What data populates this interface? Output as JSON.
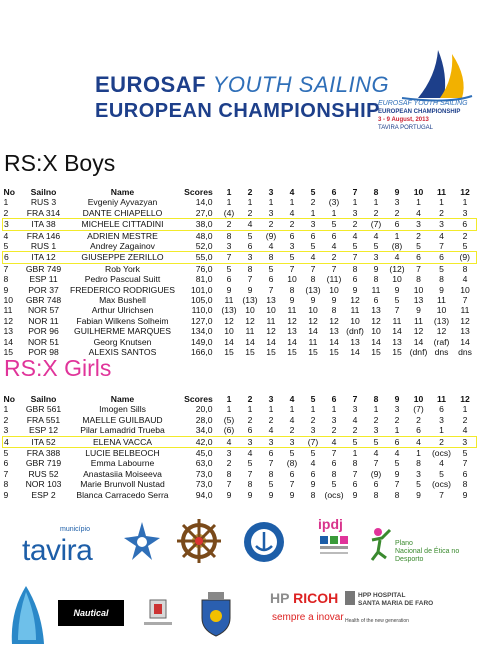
{
  "header": {
    "line1_bold": "EUROSAF",
    "line1_italic": "YOUTH SAILING",
    "line2": "EUROPEAN CHAMPIONSHIP",
    "logo": {
      "line1": "EUROSAF YOUTH SAILING",
      "line2": "EUROPEAN CHAMPIONSHIP",
      "line3": "3 - 9 August, 2013",
      "line4": "TAVIRA PORTUGAL"
    }
  },
  "columns": [
    "No",
    "Sailno",
    "Name",
    "Scores",
    "1",
    "2",
    "3",
    "4",
    "5",
    "6",
    "7",
    "8",
    "9",
    "10",
    "11",
    "12"
  ],
  "boys": {
    "title": "RS:X Boys",
    "rows": [
      {
        "no": "1",
        "sailno": "RUS 3",
        "name": "Evgeniy Ayvazyan",
        "score": "14,0",
        "r": [
          "1",
          "1",
          "1",
          "1",
          "2",
          "(3)",
          "1",
          "1",
          "3",
          "1",
          "1",
          "1"
        ]
      },
      {
        "no": "2",
        "sailno": "FRA 314",
        "name": "DANTE CHIAPELLO",
        "score": "27,0",
        "r": [
          "(4)",
          "2",
          "3",
          "4",
          "1",
          "1",
          "3",
          "2",
          "2",
          "4",
          "2",
          "3"
        ]
      },
      {
        "no": "3",
        "sailno": "ITA 38",
        "name": "MICHELE CITTADINI",
        "score": "38,0",
        "r": [
          "2",
          "4",
          "2",
          "2",
          "3",
          "5",
          "2",
          "(7)",
          "6",
          "3",
          "3",
          "6"
        ],
        "hl": true
      },
      {
        "no": "4",
        "sailno": "FRA 146",
        "name": "ADRIEN MESTRE",
        "score": "48,0",
        "r": [
          "8",
          "5",
          "(9)",
          "6",
          "6",
          "6",
          "4",
          "4",
          "1",
          "2",
          "4",
          "2"
        ]
      },
      {
        "no": "5",
        "sailno": "RUS 1",
        "name": "Andrey Zagainov",
        "score": "52,0",
        "r": [
          "3",
          "6",
          "4",
          "3",
          "5",
          "4",
          "5",
          "5",
          "(8)",
          "5",
          "7",
          "5"
        ]
      },
      {
        "no": "6",
        "sailno": "ITA 12",
        "name": "GIUSEPPE ZERILLO",
        "score": "55,0",
        "r": [
          "7",
          "3",
          "8",
          "5",
          "4",
          "2",
          "7",
          "3",
          "4",
          "6",
          "6",
          "(9)"
        ],
        "hl": true
      },
      {
        "no": "7",
        "sailno": "GBR 749",
        "name": "Rob York",
        "score": "76,0",
        "r": [
          "5",
          "8",
          "5",
          "7",
          "7",
          "7",
          "8",
          "9",
          "(12)",
          "7",
          "5",
          "8"
        ]
      },
      {
        "no": "8",
        "sailno": "ESP 11",
        "name": "Pedro Pascual Suitt",
        "score": "81,0",
        "r": [
          "6",
          "7",
          "6",
          "10",
          "8",
          "(11)",
          "6",
          "8",
          "10",
          "8",
          "8",
          "4"
        ]
      },
      {
        "no": "9",
        "sailno": "POR 37",
        "name": "FREDERICO RODRIGUES",
        "score": "101,0",
        "r": [
          "9",
          "9",
          "7",
          "8",
          "(13)",
          "10",
          "9",
          "11",
          "9",
          "10",
          "9",
          "10"
        ]
      },
      {
        "no": "10",
        "sailno": "GBR 748",
        "name": "Max Bushell",
        "score": "105,0",
        "r": [
          "11",
          "(13)",
          "13",
          "9",
          "9",
          "9",
          "12",
          "6",
          "5",
          "13",
          "11",
          "7"
        ]
      },
      {
        "no": "11",
        "sailno": "NOR 57",
        "name": "Arthur Ulrichsen",
        "score": "110,0",
        "r": [
          "(13)",
          "10",
          "10",
          "11",
          "10",
          "8",
          "11",
          "13",
          "7",
          "9",
          "10",
          "11"
        ]
      },
      {
        "no": "12",
        "sailno": "NOR 11",
        "name": "Fabian Wilkens Solheim",
        "score": "127,0",
        "r": [
          "12",
          "12",
          "11",
          "12",
          "12",
          "12",
          "10",
          "12",
          "11",
          "11",
          "(13)",
          "12"
        ]
      },
      {
        "no": "13",
        "sailno": "POR 96",
        "name": "GUILHERME MARQUES",
        "score": "134,0",
        "r": [
          "10",
          "11",
          "12",
          "13",
          "14",
          "13",
          "(dnf)",
          "10",
          "14",
          "12",
          "12",
          "13"
        ]
      },
      {
        "no": "14",
        "sailno": "NOR 51",
        "name": "Georg Knutsen",
        "score": "149,0",
        "r": [
          "14",
          "14",
          "14",
          "14",
          "11",
          "14",
          "13",
          "14",
          "13",
          "14",
          "(raf)",
          "14"
        ]
      },
      {
        "no": "15",
        "sailno": "POR 98",
        "name": "ALEXIS SANTOS",
        "score": "166,0",
        "r": [
          "15",
          "15",
          "15",
          "15",
          "15",
          "15",
          "14",
          "15",
          "15",
          "(dnf)",
          "dns",
          "dns"
        ]
      }
    ]
  },
  "girls": {
    "title": "RS:X Girls",
    "rows": [
      {
        "no": "1",
        "sailno": "GBR 561",
        "name": "Imogen Sills",
        "score": "20,0",
        "r": [
          "1",
          "1",
          "1",
          "1",
          "1",
          "1",
          "3",
          "1",
          "3",
          "(7)",
          "6",
          "1"
        ]
      },
      {
        "no": "2",
        "sailno": "FRA 551",
        "name": "MAELLE GUILBAUD",
        "score": "28,0",
        "r": [
          "(5)",
          "2",
          "2",
          "4",
          "2",
          "3",
          "4",
          "2",
          "2",
          "2",
          "3",
          "2"
        ]
      },
      {
        "no": "3",
        "sailno": "ESP 12",
        "name": "Pilar Lamadrid Trueba",
        "score": "34,0",
        "r": [
          "(6)",
          "6",
          "4",
          "2",
          "3",
          "2",
          "2",
          "3",
          "1",
          "6",
          "1",
          "4"
        ]
      },
      {
        "no": "4",
        "sailno": "ITA 52",
        "name": "ELENA VACCA",
        "score": "42,0",
        "r": [
          "4",
          "3",
          "3",
          "3",
          "(7)",
          "4",
          "5",
          "5",
          "6",
          "4",
          "2",
          "3"
        ],
        "hl": true
      },
      {
        "no": "5",
        "sailno": "FRA 388",
        "name": "LUCIE BELBEOCH",
        "score": "45,0",
        "r": [
          "3",
          "4",
          "6",
          "5",
          "5",
          "7",
          "1",
          "4",
          "4",
          "1",
          "(ocs)",
          "5"
        ]
      },
      {
        "no": "6",
        "sailno": "GBR 719",
        "name": "Emma Labourne",
        "score": "63,0",
        "r": [
          "2",
          "5",
          "7",
          "(8)",
          "4",
          "6",
          "8",
          "7",
          "5",
          "8",
          "4",
          "7"
        ]
      },
      {
        "no": "7",
        "sailno": "RUS 52",
        "name": "Anastasiia Moiseeva",
        "score": "73,0",
        "r": [
          "8",
          "7",
          "8",
          "6",
          "6",
          "8",
          "7",
          "(9)",
          "9",
          "3",
          "5",
          "6"
        ]
      },
      {
        "no": "8",
        "sailno": "NOR 103",
        "name": "Marie Brunvoll Nustad",
        "score": "73,0",
        "r": [
          "7",
          "8",
          "5",
          "7",
          "9",
          "5",
          "6",
          "6",
          "7",
          "5",
          "(ocs)",
          "8"
        ]
      },
      {
        "no": "9",
        "sailno": "ESP 2",
        "name": "Blanca Carracedo Serra",
        "score": "94,0",
        "r": [
          "9",
          "9",
          "9",
          "9",
          "8",
          "(ocs)",
          "9",
          "8",
          "8",
          "9",
          "7",
          "9"
        ]
      }
    ]
  },
  "sponsors": {
    "tavira_small": "município",
    "tavira": "tavira",
    "ipdj": "ipdj",
    "plano_line1": "Plano",
    "plano_line2": "Nacional de Ética no",
    "plano_line3": "Desporto",
    "nautical": "Nautical",
    "hp": "HP",
    "ricoh": "RICOH",
    "ricoh_sub": "sempre a inovar",
    "hpp_line1": "HPP HOSPITAL",
    "hpp_line2": "SANTA MARIA DE FARO",
    "hpp_sub": "Health of the new generation"
  },
  "colors": {
    "brand_blue": "#1d3f8a",
    "girls_pink": "#e0349a",
    "highlight_yellow": "#f2ea2a"
  }
}
